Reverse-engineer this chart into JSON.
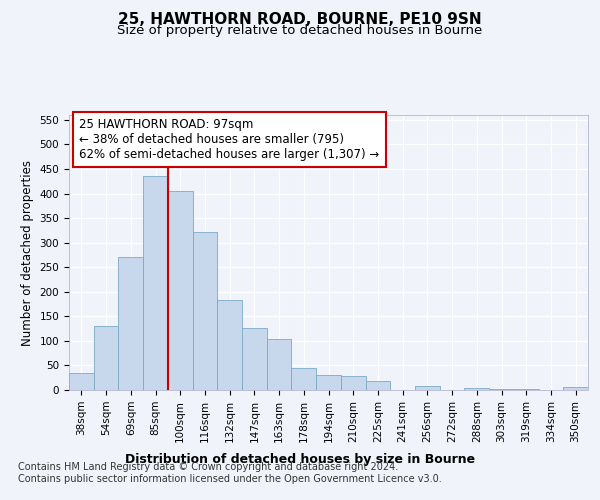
{
  "title1": "25, HAWTHORN ROAD, BOURNE, PE10 9SN",
  "title2": "Size of property relative to detached houses in Bourne",
  "xlabel": "Distribution of detached houses by size in Bourne",
  "ylabel": "Number of detached properties",
  "categories": [
    "38sqm",
    "54sqm",
    "69sqm",
    "85sqm",
    "100sqm",
    "116sqm",
    "132sqm",
    "147sqm",
    "163sqm",
    "178sqm",
    "194sqm",
    "210sqm",
    "225sqm",
    "241sqm",
    "256sqm",
    "272sqm",
    "288sqm",
    "303sqm",
    "319sqm",
    "334sqm",
    "350sqm"
  ],
  "values": [
    35,
    130,
    270,
    435,
    405,
    322,
    183,
    126,
    103,
    45,
    30,
    28,
    18,
    0,
    8,
    0,
    4,
    3,
    2,
    1,
    6
  ],
  "bar_color": "#c8d8ec",
  "bar_edge_color": "#7baac8",
  "vline_x": 3.5,
  "vline_color": "#cc0000",
  "annotation_text": "25 HAWTHORN ROAD: 97sqm\n← 38% of detached houses are smaller (795)\n62% of semi-detached houses are larger (1,307) →",
  "annotation_box_color": "#ffffff",
  "annotation_box_edge": "#cc0000",
  "footer_text": "Contains HM Land Registry data © Crown copyright and database right 2024.\nContains public sector information licensed under the Open Government Licence v3.0.",
  "ylim": [
    0,
    560
  ],
  "yticks": [
    0,
    50,
    100,
    150,
    200,
    250,
    300,
    350,
    400,
    450,
    500,
    550
  ],
  "background_color": "#f0f4fa",
  "plot_bg_color": "#f0f4fa",
  "title1_fontsize": 11,
  "title2_fontsize": 9.5,
  "xlabel_fontsize": 9,
  "ylabel_fontsize": 8.5,
  "tick_fontsize": 7.5,
  "annotation_fontsize": 8.5,
  "footer_fontsize": 7
}
